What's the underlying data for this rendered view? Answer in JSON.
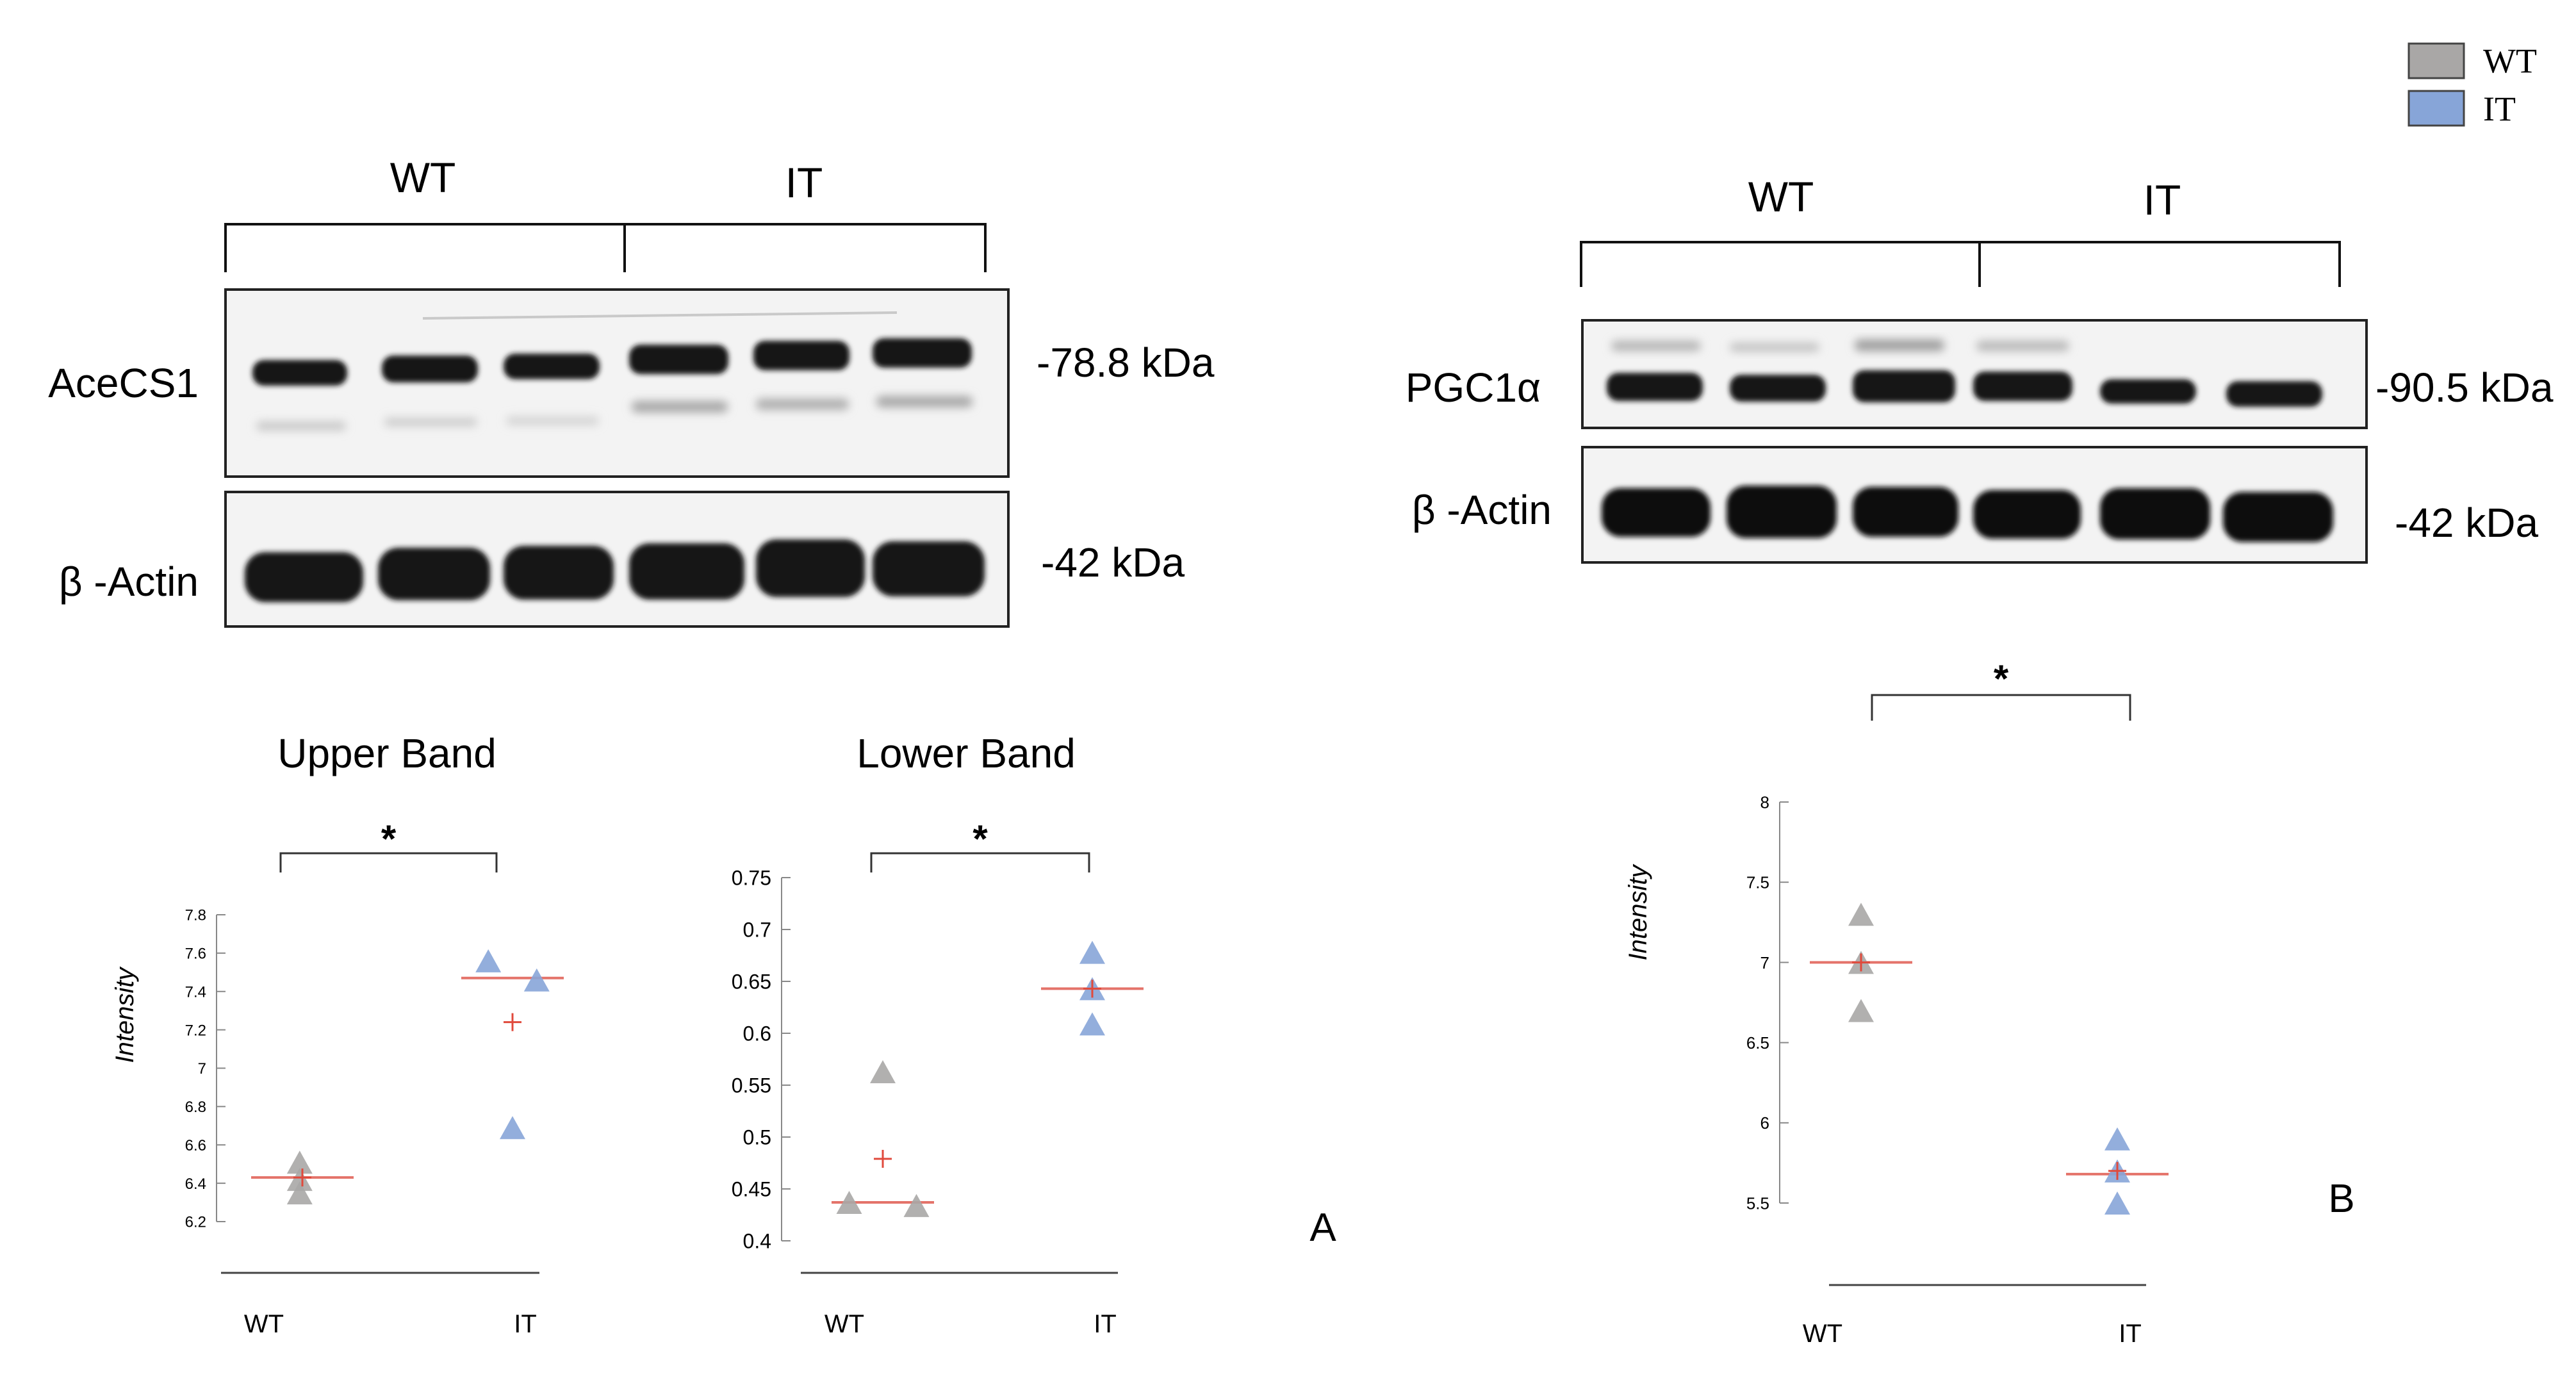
{
  "legend": {
    "items": [
      {
        "label": "WT",
        "color": "#a9a7a6"
      },
      {
        "label": "IT",
        "color": "#87a5d8"
      }
    ]
  },
  "panel_a": {
    "letter": "A",
    "blot": {
      "group_labels": [
        "WT",
        "IT"
      ],
      "rows": [
        {
          "label": "AceCS1",
          "kda": "-78.8 kDa"
        },
        {
          "label": "β -Actin",
          "kda": "-42 kDa"
        }
      ]
    }
  },
  "panel_b": {
    "letter": "B",
    "blot": {
      "group_labels": [
        "WT",
        "IT"
      ],
      "rows": [
        {
          "label": "PGC1α",
          "kda": "-90.5 kDa"
        },
        {
          "label": "β -Actin",
          "kda": "-42 kDa"
        }
      ]
    }
  },
  "chart_data": [
    {
      "type": "scatter",
      "title": "Upper Band",
      "ylabel": "Intensity",
      "categories": [
        "WT",
        "IT"
      ],
      "ylim": [
        6.2,
        7.8
      ],
      "yticks": [
        "6.2",
        "6.4",
        "6.6",
        "6.8",
        "7",
        "7.2",
        "7.4",
        "7.6",
        "7.8"
      ],
      "significance": "*",
      "series": [
        {
          "category": "WT",
          "color": "#a9a7a6",
          "points": [
            [
              -0.02,
              6.51
            ],
            [
              -0.02,
              6.42
            ],
            [
              -0.02,
              6.35
            ]
          ],
          "median": 6.43,
          "mean": 6.43
        },
        {
          "category": "IT",
          "color": "#87a5d8",
          "points": [
            [
              -0.18,
              7.56
            ],
            [
              0.18,
              7.46
            ],
            [
              0.0,
              6.69
            ]
          ],
          "median": 7.47,
          "mean": 7.24
        }
      ]
    },
    {
      "type": "scatter",
      "title": "Lower Band",
      "ylabel": "",
      "categories": [
        "WT",
        "IT"
      ],
      "ylim": [
        0.4,
        0.75
      ],
      "yticks": [
        "0.4",
        "0.45",
        "0.5",
        "0.55",
        "0.6",
        "0.65",
        "0.7",
        "0.75"
      ],
      "significance": "*",
      "series": [
        {
          "category": "WT",
          "color": "#a9a7a6",
          "points": [
            [
              0.0,
              0.563
            ],
            [
              -0.25,
              0.437
            ],
            [
              0.25,
              0.434
            ]
          ],
          "median": 0.437,
          "mean": 0.479
        },
        {
          "category": "IT",
          "color": "#87a5d8",
          "points": [
            [
              0.0,
              0.678
            ],
            [
              0.0,
              0.643
            ],
            [
              0.0,
              0.609
            ]
          ],
          "median": 0.643,
          "mean": 0.643
        }
      ]
    },
    {
      "type": "scatter",
      "title": "",
      "ylabel": "Intensity",
      "categories": [
        "WT",
        "IT"
      ],
      "ylim": [
        5.5,
        8
      ],
      "yticks": [
        "5.5",
        "6",
        "6.5",
        "7",
        "7.5",
        "8"
      ],
      "significance": "*",
      "series": [
        {
          "category": "WT",
          "color": "#a9a7a6",
          "points": [
            [
              0.0,
              7.3
            ],
            [
              0.0,
              7.0
            ],
            [
              0.0,
              6.7
            ]
          ],
          "median": 7.0,
          "mean": 7.0
        },
        {
          "category": "IT",
          "color": "#87a5d8",
          "points": [
            [
              0.0,
              5.9
            ],
            [
              0.0,
              5.7
            ],
            [
              0.0,
              5.5
            ]
          ],
          "median": 5.68,
          "mean": 5.7
        }
      ]
    }
  ]
}
